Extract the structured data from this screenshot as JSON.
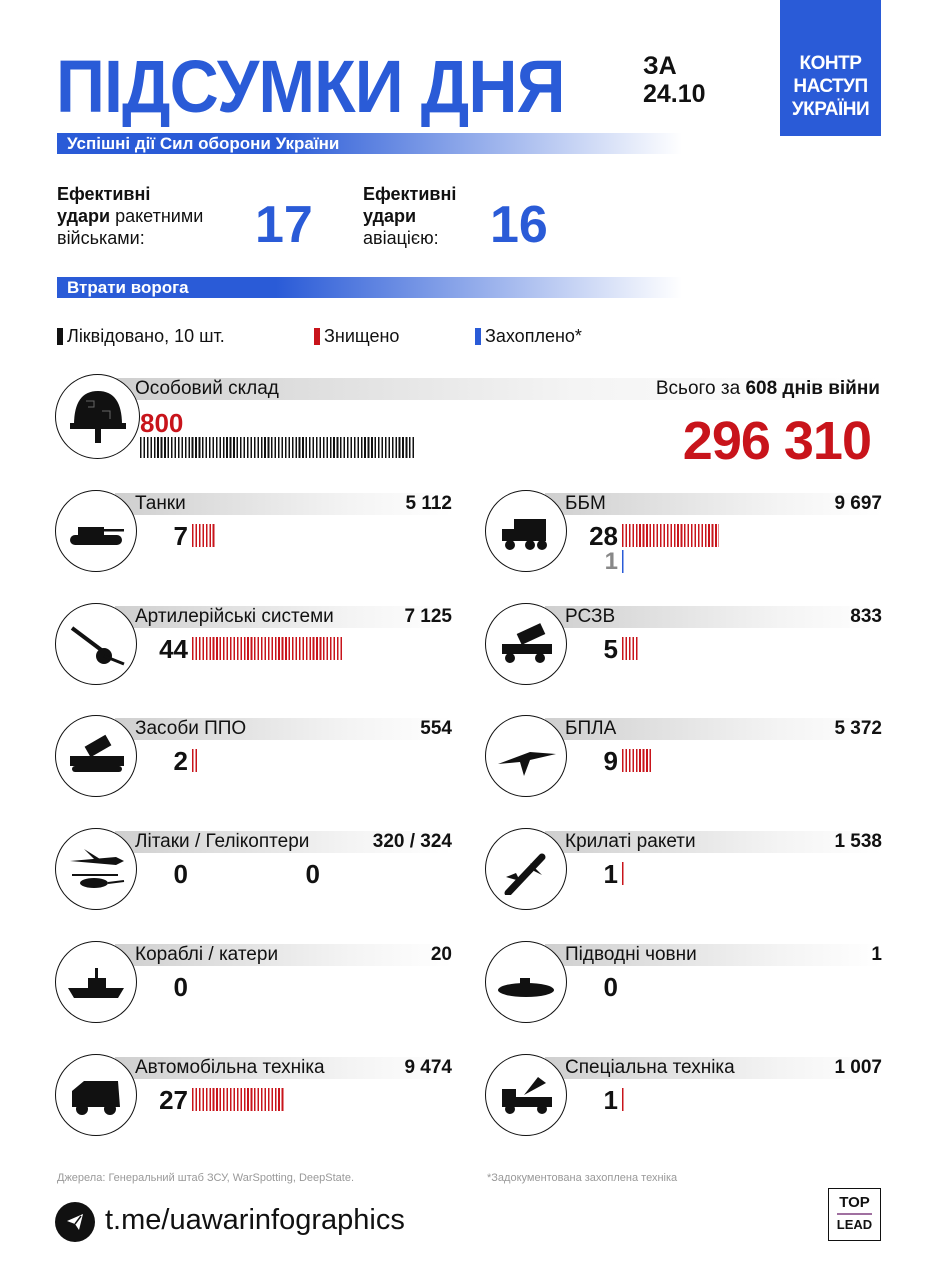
{
  "header": {
    "title": "ПІДСУМКИ ДНЯ",
    "date_prefix": "ЗА",
    "date": "24.10",
    "brand": [
      "КОНТР",
      "НАСТУП",
      "УКРАЇНИ"
    ]
  },
  "section1": "Успішні дії Сил оборони України",
  "strikes": [
    {
      "bold1": "Ефективні",
      "bold2": "удари",
      "rest1": " ракетними",
      "rest2": "військами:",
      "value": "17"
    },
    {
      "bold1": "Ефективні",
      "bold2": "удари",
      "rest1": "",
      "rest2": "авіацією:",
      "value": "16"
    }
  ],
  "section2": "Втрати ворога",
  "legend": [
    {
      "label": "Ліквідовано, 10 шт.",
      "color": "#111111"
    },
    {
      "label": "Знищено",
      "color": "#c8141b"
    },
    {
      "label": "Захоплено*",
      "color": "#2a5bd7"
    }
  ],
  "personnel": {
    "label": "Особовий склад",
    "today": "800",
    "today_value": 800,
    "total_prefix": "Всього за ",
    "days": "608 днів війни",
    "total": "296 310"
  },
  "colors": {
    "accent": "#2a5bd7",
    "destroyed": "#c8141b",
    "liquidated": "#111111",
    "captured": "#2a5bd7"
  },
  "items": [
    {
      "label": "Танки",
      "total": "5 112",
      "destroyed": 7,
      "icon": "tank-icon"
    },
    {
      "label": "ББМ",
      "total": "9 697",
      "destroyed": 28,
      "captured": 1,
      "icon": "armored-vehicle-icon"
    },
    {
      "label": "Артилерійські системи",
      "total": "7 125",
      "destroyed": 44,
      "icon": "artillery-icon"
    },
    {
      "label": "РСЗВ",
      "total": "833",
      "destroyed": 5,
      "icon": "mlrs-icon"
    },
    {
      "label": "Засоби ППО",
      "total": "554",
      "destroyed": 2,
      "icon": "air-defense-icon"
    },
    {
      "label": "БПЛА",
      "total": "5 372",
      "destroyed": 9,
      "icon": "drone-icon"
    },
    {
      "label": "Літаки / Гелікоптери",
      "total": "320 / 324",
      "destroyed": 0,
      "destroyed2": 0,
      "icon": "aircraft-helicopter-icon"
    },
    {
      "label": "Крилаті ракети",
      "total": "1 538",
      "destroyed": 1,
      "icon": "cruise-missile-icon"
    },
    {
      "label": "Кораблі / катери",
      "total": "20",
      "destroyed": 0,
      "icon": "ship-icon"
    },
    {
      "label": "Підводні човни",
      "total": "1",
      "destroyed": 0,
      "icon": "submarine-icon"
    },
    {
      "label": "Автомобільна техніка",
      "total": "9 474",
      "destroyed": 27,
      "icon": "truck-icon"
    },
    {
      "label": "Спеціальна техніка",
      "total": "1 007",
      "destroyed": 1,
      "icon": "special-vehicle-icon"
    }
  ],
  "footer": {
    "sources": "Джерела: Генеральний штаб ЗСУ, WarSpotting, DeepState.",
    "note": "*Задокументована захоплена техніка",
    "link": "t.me/uawarinfographics",
    "logo": [
      "TOP",
      "LEAD"
    ]
  }
}
